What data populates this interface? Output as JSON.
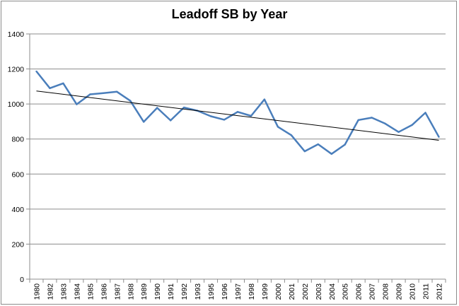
{
  "chart_data": {
    "type": "line",
    "title": "Leadoff SB  by Year",
    "xlabel": "",
    "ylabel": "",
    "ylim": [
      0,
      1400
    ],
    "yticks": [
      0,
      200,
      400,
      600,
      800,
      1000,
      1200,
      1400
    ],
    "grid": true,
    "legend": "none",
    "categories": [
      "1980",
      "1982",
      "1983",
      "1984",
      "1985",
      "1986",
      "1987",
      "1988",
      "1989",
      "1990",
      "1991",
      "1992",
      "1993",
      "1995",
      "1996",
      "1997",
      "1998",
      "1999",
      "2000",
      "2001",
      "2002",
      "2003",
      "2004",
      "2005",
      "2006",
      "2007",
      "2008",
      "2009",
      "2010",
      "2011",
      "2012"
    ],
    "series": [
      {
        "values": [
          1186,
          1090,
          1118,
          998,
          1055,
          1062,
          1070,
          1018,
          898,
          978,
          906,
          980,
          962,
          930,
          910,
          955,
          932,
          1026,
          870,
          822,
          730,
          770,
          715,
          768,
          908,
          922,
          888,
          840,
          880,
          950,
          812
        ],
        "color": "#4a7ebb"
      }
    ],
    "trendline": {
      "type": "linear",
      "start": 1074,
      "end": 793,
      "color": "#000000"
    }
  }
}
